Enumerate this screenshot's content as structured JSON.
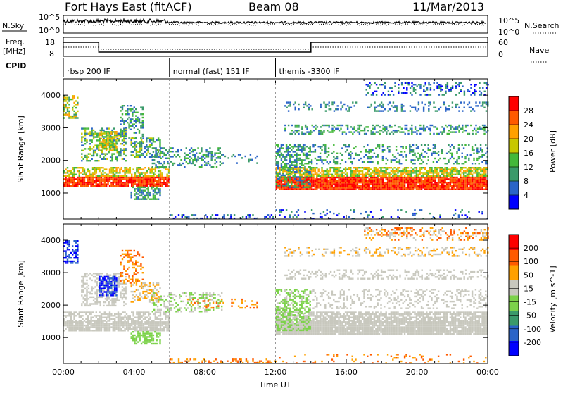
{
  "header": {
    "station": "Fort Hays East (fitACF)",
    "beam": "Beam 08",
    "date": "11/Mar/2013"
  },
  "top_panels": {
    "nsky_label": "N.Sky",
    "nsearch_label": "N.Search",
    "nsky_ticks": [
      "10^5",
      "10^0"
    ],
    "nsky_right_ticks": [
      "10^5",
      "10^0"
    ],
    "freq_label_1": "Freq.",
    "freq_label_2": "[MHz]",
    "freq_ticks": [
      "18",
      "8"
    ],
    "nave_label": "Nave",
    "nave_ticks": [
      "60",
      "0"
    ],
    "cpid_label": "CPID",
    "cpid_modes": [
      {
        "label": "rbsp 200 IF",
        "start_hour": 0
      },
      {
        "label": "normal (fast) 151 IF",
        "start_hour": 6
      },
      {
        "label": "themis -3300 IF",
        "start_hour": 12
      }
    ]
  },
  "chart_data": [
    {
      "type": "heatmap",
      "title": "",
      "ylabel": "Slant Range [km]",
      "xlabel": "",
      "xlim": [
        0,
        24
      ],
      "ylim": [
        200,
        4500
      ],
      "yticks": [
        1000,
        2000,
        3000,
        4000
      ],
      "colorbar": {
        "label": "Power [dB]",
        "ticks": [
          "28",
          "24",
          "20",
          "16",
          "12",
          "8",
          "4"
        ]
      },
      "description_features": [
        "ground scatter band ~1100-1900 km",
        "ionospheric echoes 2000-4500 km"
      ]
    },
    {
      "type": "heatmap",
      "title": "",
      "ylabel": "Slant Range [km]",
      "xlabel": "Time UT",
      "xlim": [
        0,
        24
      ],
      "ylim": [
        200,
        4500
      ],
      "yticks": [
        1000,
        2000,
        3000,
        4000
      ],
      "xtick_labels": [
        "00:00",
        "04:00",
        "08:00",
        "12:00",
        "16:00",
        "20:00",
        "00:00"
      ],
      "colorbar": {
        "label": "Velocity [m s^-1]",
        "ticks": [
          "200",
          "100",
          "50",
          "15",
          "-15",
          "-50",
          "-100",
          "-200"
        ]
      }
    }
  ],
  "colors": {
    "power_scale": [
      "#0000ff",
      "#2a64c8",
      "#3a9a6a",
      "#44b83a",
      "#c8c800",
      "#ffa000",
      "#ff5a00",
      "#ff0000"
    ],
    "velocity_scale": [
      "#0000ff",
      "#2a64c8",
      "#3a9a6a",
      "#7cd24a",
      "#c8c8be",
      "#ffa000",
      "#ff5a00",
      "#ff0000"
    ]
  }
}
